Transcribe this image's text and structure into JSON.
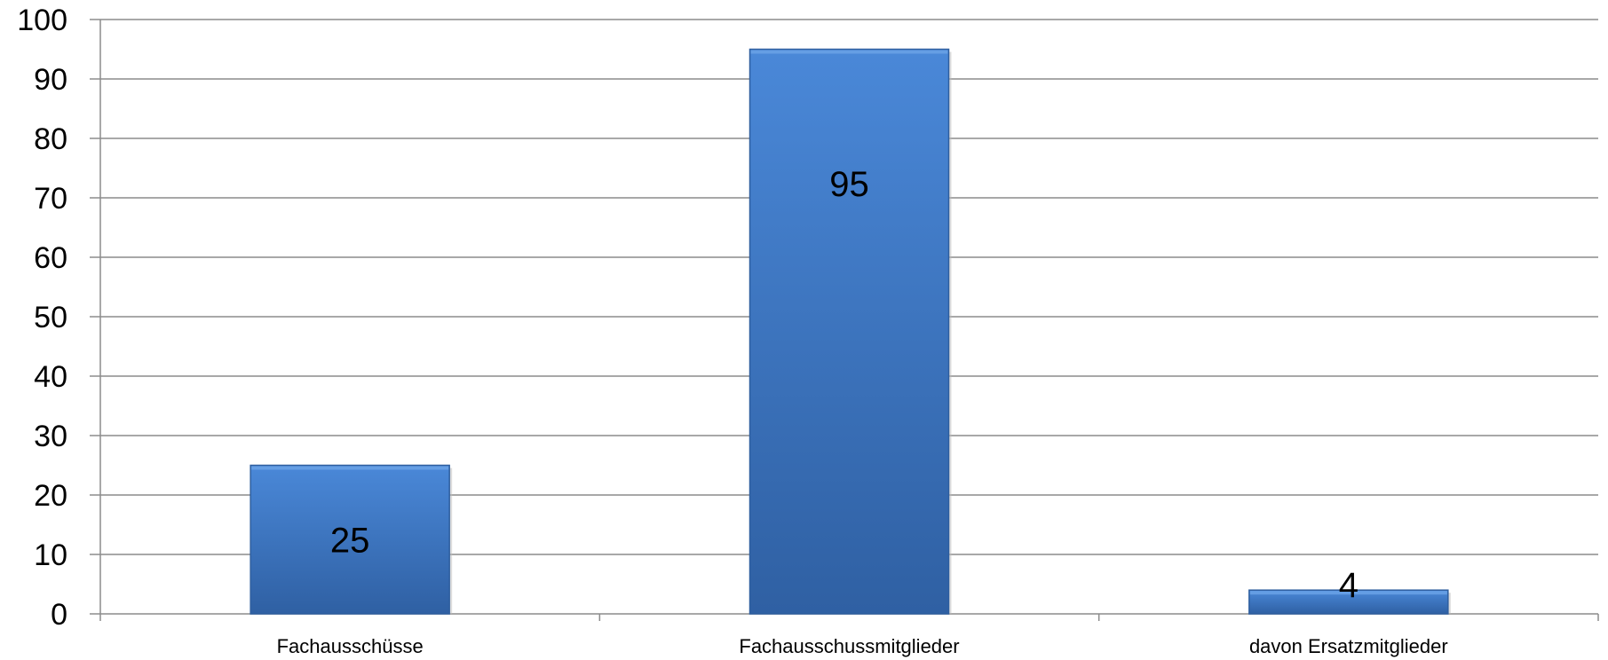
{
  "chart_data": {
    "type": "bar",
    "categories": [
      "Fachausschüsse",
      "Fachausschussmitglieder",
      "davon Ersatzmitglieder"
    ],
    "values": [
      25,
      95,
      4
    ],
    "data_labels": [
      "25",
      "95",
      "4"
    ],
    "title": "",
    "xlabel": "",
    "ylabel": "",
    "ylim": [
      0,
      100
    ],
    "yticks": [
      0,
      10,
      20,
      30,
      40,
      50,
      60,
      70,
      80,
      90,
      100
    ],
    "ytick_labels": [
      "0",
      "10",
      "20",
      "30",
      "40",
      "50",
      "60",
      "70",
      "80",
      "90",
      "100"
    ],
    "grid": true,
    "legend": "none",
    "bar_color": "#3f78c4",
    "bar_color_dark": "#2f5f9f",
    "grid_color": "#8c8c8c"
  }
}
